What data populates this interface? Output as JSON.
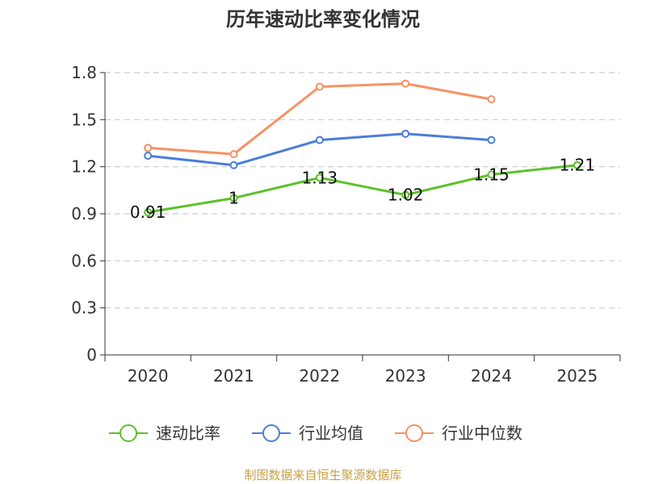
{
  "chart_data": {
    "type": "line",
    "title": "历年速动比率变化情况",
    "categories": [
      "2020",
      "2021",
      "2022",
      "2023",
      "2024",
      "2025"
    ],
    "ylim": [
      0,
      1.8
    ],
    "yticks": [
      "0",
      "0.3",
      "0.6",
      "0.9",
      "1.2",
      "1.5",
      "1.8"
    ],
    "grid": true,
    "legend_position": "bottom",
    "series": [
      {
        "name": "速动比率",
        "color": "#5cc12a",
        "values": [
          0.91,
          1.0,
          1.13,
          1.02,
          1.15,
          1.21
        ],
        "labels": [
          "0.91",
          "1",
          "1.13",
          "1.02",
          "1.15",
          "1.21"
        ]
      },
      {
        "name": "行业均值",
        "color": "#4a7ed8",
        "values": [
          1.27,
          1.21,
          1.37,
          1.41,
          1.37,
          null
        ]
      },
      {
        "name": "行业中位数",
        "color": "#f59264",
        "values": [
          1.32,
          1.28,
          1.71,
          1.73,
          1.63,
          null
        ]
      }
    ],
    "source": "制图数据来自恒生聚源数据库"
  }
}
